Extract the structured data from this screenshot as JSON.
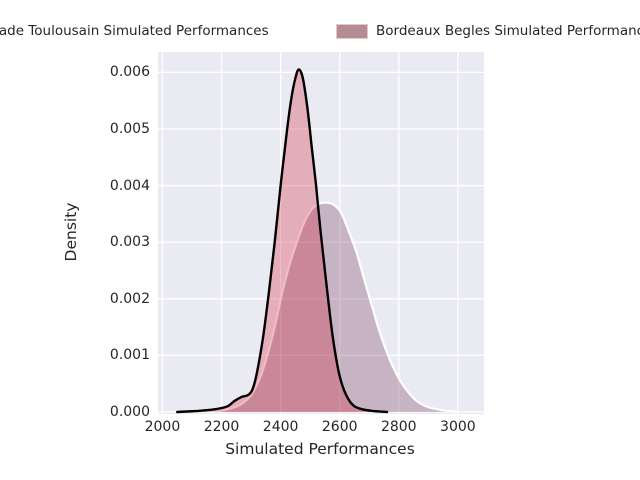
{
  "legend": {
    "entries": [
      {
        "label": "Stade Toulousain Simulated Performances",
        "swatch_color": "#d98a97",
        "swatch_border": "#e8c6cc"
      },
      {
        "label": "Bordeaux Begles Simulated Performances",
        "swatch_color": "#b48c96",
        "swatch_border": "#e8c6cc"
      }
    ]
  },
  "chart_data": {
    "type": "area",
    "subtype": "kde-density",
    "title": "",
    "xlabel": "Simulated Performances",
    "ylabel": "Density",
    "xlim": [
      1985,
      3085
    ],
    "ylim": [
      0,
      0.00636
    ],
    "x_ticks": [
      2000,
      2200,
      2400,
      2600,
      2800,
      3000
    ],
    "y_ticks": [
      0,
      0.001,
      0.002,
      0.003,
      0.004,
      0.005,
      0.006
    ],
    "y_tick_labels": [
      "0.000",
      "0.001",
      "0.002",
      "0.003",
      "0.004",
      "0.005",
      "0.006"
    ],
    "grid": true,
    "legend_position": "top",
    "colors": {
      "plot_background": "#eaeaf2",
      "gridline": "#ffffff",
      "text": "#262626"
    },
    "series": [
      {
        "name": "Bordeaux Begles Simulated Performances",
        "line_color": "#ffffff",
        "line_width": 2.2,
        "fill_color": "rgba(122,63,98,0.32)",
        "peak": {
          "x": 2555,
          "density": 0.0037
        },
        "points": [
          [
            2170,
            0
          ],
          [
            2230,
            6e-05
          ],
          [
            2270,
            0.00015
          ],
          [
            2300,
            0.0003
          ],
          [
            2330,
            0.0006
          ],
          [
            2355,
            0.001
          ],
          [
            2380,
            0.0015
          ],
          [
            2405,
            0.0021
          ],
          [
            2430,
            0.0026
          ],
          [
            2455,
            0.003
          ],
          [
            2480,
            0.00335
          ],
          [
            2505,
            0.00358
          ],
          [
            2530,
            0.00368
          ],
          [
            2555,
            0.0037
          ],
          [
            2580,
            0.00366
          ],
          [
            2605,
            0.00352
          ],
          [
            2630,
            0.0032
          ],
          [
            2655,
            0.00285
          ],
          [
            2680,
            0.0024
          ],
          [
            2705,
            0.00195
          ],
          [
            2730,
            0.0015
          ],
          [
            2755,
            0.00112
          ],
          [
            2780,
            0.0008
          ],
          [
            2805,
            0.00055
          ],
          [
            2830,
            0.00036
          ],
          [
            2855,
            0.00022
          ],
          [
            2880,
            0.00013
          ],
          [
            2910,
            7e-05
          ],
          [
            2950,
            3e-05
          ],
          [
            3000,
            0
          ]
        ]
      },
      {
        "name": "Stade Toulousain Simulated Performances",
        "line_color": "#000000",
        "line_width": 2.4,
        "fill_color": "rgba(212,44,64,0.32)",
        "peak": {
          "x": 2462,
          "density": 0.00605
        },
        "points": [
          [
            2050,
            0
          ],
          [
            2120,
            2e-05
          ],
          [
            2180,
            5e-05
          ],
          [
            2220,
            0.0001
          ],
          [
            2245,
            0.0002
          ],
          [
            2270,
            0.00027
          ],
          [
            2290,
            0.0003
          ],
          [
            2305,
            0.0004
          ],
          [
            2320,
            0.0007
          ],
          [
            2340,
            0.0013
          ],
          [
            2360,
            0.0021
          ],
          [
            2380,
            0.003
          ],
          [
            2400,
            0.004
          ],
          [
            2420,
            0.0049
          ],
          [
            2435,
            0.0055
          ],
          [
            2450,
            0.0059
          ],
          [
            2462,
            0.00605
          ],
          [
            2475,
            0.0059
          ],
          [
            2490,
            0.0054
          ],
          [
            2505,
            0.0047
          ],
          [
            2520,
            0.004
          ],
          [
            2535,
            0.0032
          ],
          [
            2550,
            0.0025
          ],
          [
            2565,
            0.0018
          ],
          [
            2580,
            0.0012
          ],
          [
            2595,
            0.00075
          ],
          [
            2610,
            0.00045
          ],
          [
            2630,
            0.00022
          ],
          [
            2650,
            0.0001
          ],
          [
            2675,
            5e-05
          ],
          [
            2710,
            2e-05
          ],
          [
            2760,
            0
          ]
        ]
      }
    ]
  }
}
